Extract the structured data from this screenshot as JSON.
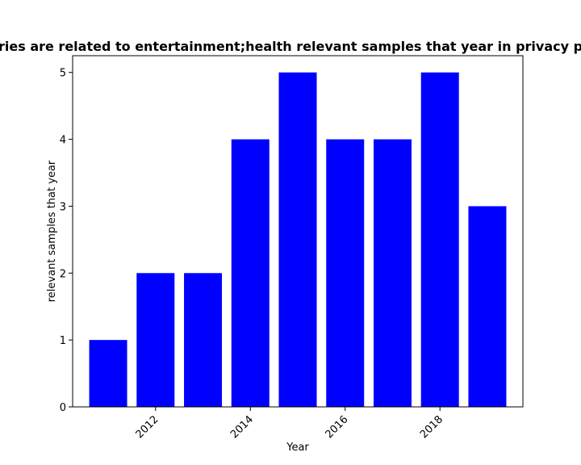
{
  "chart_data": {
    "type": "bar",
    "title": "...categories are related to entertainment;health relevant samples that year in privacy p...",
    "title_visible": "ries are related to entertainment;health relevant samples that year in privacy p",
    "xlabel": "Year",
    "ylabel": "relevant samples that year",
    "x": [
      2011,
      2012,
      2013,
      2014,
      2015,
      2016,
      2017,
      2018,
      2019
    ],
    "values": [
      1,
      2,
      2,
      4,
      5,
      4,
      4,
      5,
      3
    ],
    "xlim": [
      2010.25,
      2019.75
    ],
    "ylim": [
      0,
      5.25
    ],
    "xticks": [
      2012,
      2014,
      2016,
      2018
    ],
    "xtick_labels": [
      "2012",
      "2014",
      "2016",
      "2018"
    ],
    "yticks": [
      0,
      1,
      2,
      3,
      4,
      5
    ],
    "ytick_labels": [
      "0",
      "1",
      "2",
      "3",
      "4",
      "5"
    ],
    "bar_color": "#0000ff",
    "grid": false
  }
}
